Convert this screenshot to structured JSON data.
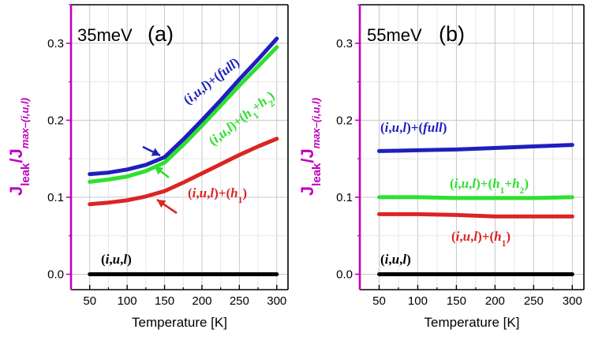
{
  "chart_data": [
    {
      "type": "line",
      "panel_label": "(a)",
      "energy_label": "35meV",
      "xlabel": "Temperature [K]",
      "ylabel": {
        "main": "J",
        "sub1": "leak",
        "sep": "/J",
        "sub2": "max–(i,u,l)"
      },
      "xlim": [
        25,
        315
      ],
      "ylim": [
        -0.02,
        0.35
      ],
      "xticks": [
        "50",
        "100",
        "150",
        "200",
        "250",
        "300"
      ],
      "yticks": [
        "0.0",
        "0.1",
        "0.2",
        "0.3"
      ],
      "grid": true,
      "series": [
        {
          "name": "(i,u,l)+(full)",
          "color": "#1f1fbf",
          "x": [
            50,
            75,
            100,
            125,
            150,
            175,
            200,
            225,
            250,
            275,
            300
          ],
          "y": [
            0.13,
            0.132,
            0.136,
            0.142,
            0.152,
            0.175,
            0.2,
            0.226,
            0.253,
            0.279,
            0.306
          ]
        },
        {
          "name": "(i,u,l)+(h1+h2)",
          "color": "#2ee02e",
          "x": [
            50,
            75,
            100,
            125,
            150,
            175,
            200,
            225,
            250,
            275,
            300
          ],
          "y": [
            0.12,
            0.123,
            0.127,
            0.134,
            0.145,
            0.168,
            0.193,
            0.219,
            0.245,
            0.27,
            0.295
          ]
        },
        {
          "name": "(i,u,l)+(h1)",
          "color": "#dc2424",
          "x": [
            50,
            75,
            100,
            125,
            150,
            175,
            200,
            225,
            250,
            275,
            300
          ],
          "y": [
            0.091,
            0.093,
            0.096,
            0.101,
            0.108,
            0.119,
            0.131,
            0.143,
            0.155,
            0.166,
            0.176
          ]
        },
        {
          "name": "(i,u,l)",
          "color": "#000000",
          "x": [
            50,
            300
          ],
          "y": [
            0.0,
            0.0
          ]
        }
      ],
      "annotations": [
        {
          "text": "(i,u,l)+(full)",
          "color": "#1f1fbf"
        },
        {
          "text": "(i,u,l)+(h1+h2)",
          "color": "#2ee02e"
        },
        {
          "text": "(i,u,l)+(h1)",
          "color": "#dc2424"
        },
        {
          "text": "(i,u,l)",
          "color": "#000000"
        }
      ]
    },
    {
      "type": "line",
      "panel_label": "(b)",
      "energy_label": "55meV",
      "xlabel": "Temperature [K]",
      "ylabel": {
        "main": "J",
        "sub1": "leak",
        "sep": "/J",
        "sub2": "max–(i,u,l)"
      },
      "xlim": [
        25,
        315
      ],
      "ylim": [
        -0.02,
        0.35
      ],
      "xticks": [
        "50",
        "100",
        "150",
        "200",
        "250",
        "300"
      ],
      "yticks": [
        "0.0",
        "0.1",
        "0.2",
        "0.3"
      ],
      "grid": true,
      "series": [
        {
          "name": "(i,u,l)+(full)",
          "color": "#1f1fbf",
          "x": [
            50,
            100,
            150,
            200,
            250,
            300
          ],
          "y": [
            0.16,
            0.161,
            0.162,
            0.164,
            0.166,
            0.168
          ]
        },
        {
          "name": "(i,u,l)+(h1+h2)",
          "color": "#2ee02e",
          "x": [
            50,
            100,
            150,
            200,
            250,
            300
          ],
          "y": [
            0.1,
            0.1,
            0.099,
            0.099,
            0.099,
            0.1
          ]
        },
        {
          "name": "(i,u,l)+(h1)",
          "color": "#dc2424",
          "x": [
            50,
            100,
            150,
            200,
            250,
            300
          ],
          "y": [
            0.078,
            0.078,
            0.077,
            0.075,
            0.075,
            0.075
          ]
        },
        {
          "name": "(i,u,l)",
          "color": "#000000",
          "x": [
            50,
            300
          ],
          "y": [
            0.0,
            0.0
          ]
        }
      ],
      "annotations": [
        {
          "text": "(i,u,l)+(full)",
          "color": "#1f1fbf"
        },
        {
          "text": "(i,u,l)+(h1+h2)",
          "color": "#2ee02e"
        },
        {
          "text": "(i,u,l)+(h1)",
          "color": "#dc2424"
        },
        {
          "text": "(i,u,l)",
          "color": "#000000"
        }
      ]
    }
  ]
}
